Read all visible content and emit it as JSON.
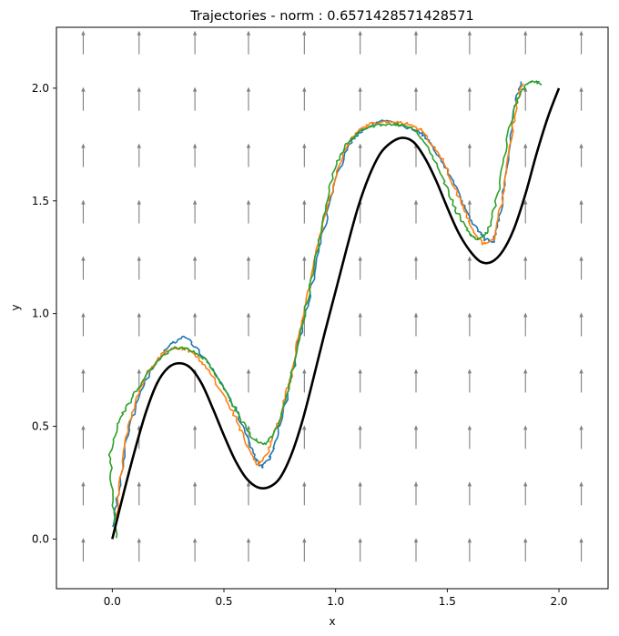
{
  "chart_data": {
    "type": "line",
    "title": "Trajectories - norm : 0.6571428571428571",
    "xlabel": "x",
    "ylabel": "y",
    "xlim": [
      -0.25,
      2.22
    ],
    "ylim": [
      -0.22,
      2.27
    ],
    "xticks": [
      0.0,
      0.5,
      1.0,
      1.5,
      2.0
    ],
    "xtick_labels": [
      "0.0",
      "0.5",
      "1.0",
      "1.5",
      "2.0"
    ],
    "yticks": [
      0.0,
      0.5,
      1.0,
      1.5,
      2.0
    ],
    "ytick_labels": [
      "0.0",
      "0.5",
      "1.0",
      "1.5",
      "2.0"
    ],
    "grid": false,
    "legend": "none",
    "reference_curve": {
      "color": "#000000",
      "x": [
        0.0,
        0.05,
        0.1,
        0.15,
        0.2,
        0.25,
        0.3,
        0.35,
        0.4,
        0.45,
        0.5,
        0.55,
        0.6,
        0.65,
        0.7,
        0.75,
        0.8,
        0.85,
        0.9,
        0.95,
        1.0,
        1.05,
        1.1,
        1.15,
        1.2,
        1.25,
        1.3,
        1.35,
        1.4,
        1.45,
        1.5,
        1.55,
        1.6,
        1.65,
        1.7,
        1.75,
        1.8,
        1.85,
        1.9,
        1.95,
        2.0
      ],
      "y": [
        0.0,
        0.2,
        0.39,
        0.56,
        0.69,
        0.76,
        0.78,
        0.76,
        0.69,
        0.58,
        0.46,
        0.35,
        0.27,
        0.23,
        0.23,
        0.27,
        0.37,
        0.52,
        0.71,
        0.91,
        1.1,
        1.29,
        1.47,
        1.61,
        1.71,
        1.76,
        1.78,
        1.76,
        1.69,
        1.59,
        1.47,
        1.36,
        1.28,
        1.23,
        1.23,
        1.28,
        1.38,
        1.53,
        1.71,
        1.87,
        2.0
      ]
    },
    "series": [
      {
        "color": "#1f77b4",
        "x": [
          0.0,
          0.03,
          0.06,
          0.1,
          0.15,
          0.2,
          0.26,
          0.32,
          0.38,
          0.44,
          0.5,
          0.55,
          0.6,
          0.64,
          0.67,
          0.7,
          0.73,
          0.76,
          0.8,
          0.84,
          0.88,
          0.92,
          0.96,
          1.0,
          1.05,
          1.1,
          1.16,
          1.22,
          1.28,
          1.34,
          1.4,
          1.45,
          1.5,
          1.55,
          1.59,
          1.63,
          1.67,
          1.71,
          1.74,
          1.77,
          1.8,
          1.83
        ],
        "y": [
          0.05,
          0.22,
          0.42,
          0.58,
          0.7,
          0.79,
          0.86,
          0.9,
          0.85,
          0.76,
          0.67,
          0.58,
          0.46,
          0.36,
          0.32,
          0.35,
          0.43,
          0.55,
          0.7,
          0.9,
          1.05,
          1.25,
          1.43,
          1.6,
          1.73,
          1.8,
          1.84,
          1.86,
          1.84,
          1.82,
          1.79,
          1.72,
          1.64,
          1.53,
          1.44,
          1.38,
          1.33,
          1.32,
          1.45,
          1.68,
          1.9,
          2.03
        ]
      },
      {
        "color": "#ff7f0e",
        "x": [
          0.02,
          0.04,
          0.07,
          0.11,
          0.16,
          0.22,
          0.28,
          0.34,
          0.4,
          0.46,
          0.52,
          0.57,
          0.61,
          0.65,
          0.69,
          0.72,
          0.76,
          0.8,
          0.84,
          0.88,
          0.92,
          0.96,
          1.0,
          1.04,
          1.09,
          1.15,
          1.21,
          1.27,
          1.33,
          1.39,
          1.44,
          1.49,
          1.53,
          1.57,
          1.61,
          1.66,
          1.71,
          1.75,
          1.78,
          1.81,
          1.84
        ],
        "y": [
          0.1,
          0.3,
          0.48,
          0.63,
          0.74,
          0.82,
          0.85,
          0.84,
          0.79,
          0.7,
          0.6,
          0.5,
          0.4,
          0.33,
          0.37,
          0.45,
          0.57,
          0.72,
          0.92,
          1.12,
          1.3,
          1.46,
          1.6,
          1.73,
          1.8,
          1.84,
          1.85,
          1.85,
          1.84,
          1.81,
          1.74,
          1.66,
          1.56,
          1.48,
          1.38,
          1.31,
          1.33,
          1.52,
          1.74,
          1.93,
          2.02
        ]
      },
      {
        "color": "#2ca02c",
        "x": [
          0.02,
          0.0,
          -0.01,
          0.02,
          0.06,
          0.11,
          0.17,
          0.23,
          0.29,
          0.35,
          0.41,
          0.47,
          0.53,
          0.58,
          0.63,
          0.68,
          0.72,
          0.76,
          0.8,
          0.84,
          0.88,
          0.92,
          0.96,
          1.0,
          1.05,
          1.1,
          1.16,
          1.22,
          1.28,
          1.34,
          1.39,
          1.44,
          1.48,
          1.52,
          1.56,
          1.6,
          1.64,
          1.68,
          1.72,
          1.76,
          1.8,
          1.84,
          1.88,
          1.92
        ],
        "y": [
          0.0,
          0.2,
          0.38,
          0.5,
          0.58,
          0.66,
          0.75,
          0.82,
          0.85,
          0.84,
          0.8,
          0.72,
          0.62,
          0.52,
          0.45,
          0.42,
          0.46,
          0.56,
          0.72,
          0.9,
          1.1,
          1.3,
          1.5,
          1.66,
          1.75,
          1.8,
          1.83,
          1.84,
          1.84,
          1.82,
          1.77,
          1.69,
          1.6,
          1.5,
          1.42,
          1.35,
          1.33,
          1.36,
          1.5,
          1.72,
          1.92,
          2.0,
          2.03,
          2.02
        ]
      }
    ],
    "vector_field": {
      "color": "#808080",
      "x": [
        -0.13,
        0.12,
        0.37,
        0.61,
        0.86,
        1.11,
        1.36,
        1.6,
        1.85,
        2.1
      ],
      "y": [
        -0.1,
        0.15,
        0.4,
        0.65,
        0.9,
        1.15,
        1.4,
        1.65,
        1.9,
        2.15
      ],
      "u": 0.0,
      "v": 1.0
    }
  }
}
